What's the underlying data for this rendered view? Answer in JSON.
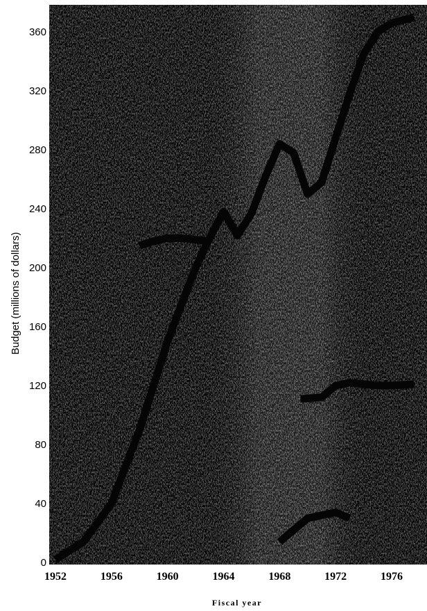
{
  "chart_data": {
    "type": "line",
    "title": "",
    "xlabel": "Fiscal year",
    "ylabel": "Budget (millions of dollars)",
    "xlim": [
      1952,
      1977.6
    ],
    "ylim": [
      0,
      370
    ],
    "x_ticks": [
      "1952",
      "1956",
      "1960",
      "1964",
      "1968",
      "1972",
      "1976"
    ],
    "y_ticks": [
      "0",
      "40",
      "80",
      "120",
      "160",
      "200",
      "240",
      "280",
      "320",
      "360"
    ],
    "grid": false,
    "background": "dark halftone photograph",
    "series": [
      {
        "x": [
          1952,
          1954,
          1956,
          1958,
          1960,
          1962,
          1963,
          1964,
          1965,
          1966,
          1967,
          1968,
          1969,
          1970,
          1971,
          1972,
          1973,
          1974,
          1975,
          1976,
          1977.6
        ],
        "values": [
          2,
          14,
          40,
          90,
          150,
          200,
          220,
          238,
          222,
          237,
          262,
          284,
          278,
          250,
          258,
          288,
          318,
          345,
          360,
          366,
          370
        ]
      },
      {
        "x": [
          1958,
          1959,
          1960,
          1961,
          1962,
          1963
        ],
        "values": [
          215,
          218,
          220,
          220,
          219,
          218
        ]
      },
      {
        "x": [
          1969.5,
          1971,
          1972,
          1973,
          1974,
          1975,
          1976,
          1977.6
        ],
        "values": [
          111,
          112,
          120,
          122,
          121,
          120,
          120,
          121
        ]
      },
      {
        "x": [
          1968,
          1969,
          1970,
          1971,
          1972,
          1973
        ],
        "values": [
          14,
          22,
          30,
          32,
          34,
          30
        ]
      }
    ]
  },
  "colors": {
    "background_dark": "#0c0c0c",
    "noise_light": "#8a8a8a",
    "series_line": "#050505",
    "axis_text": "#000000"
  }
}
